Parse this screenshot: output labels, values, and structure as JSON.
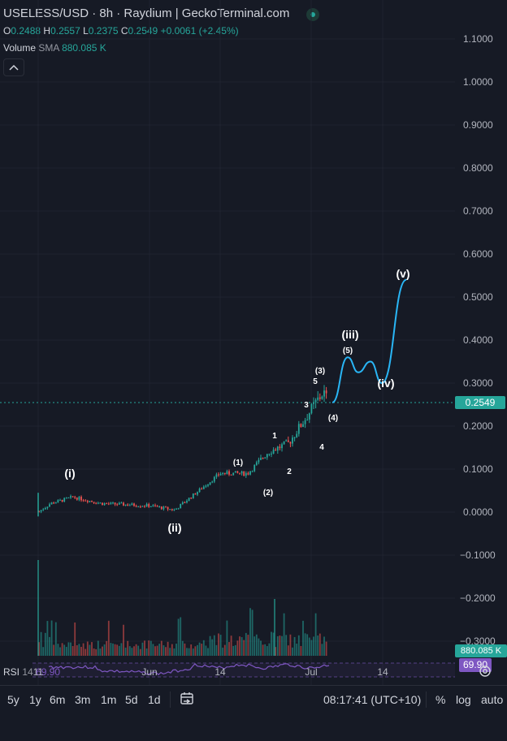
{
  "header": {
    "title": "USELESS/USD · 8h · Raydium | GeckoTerminal.com",
    "ohlc": {
      "o_label": "O",
      "o_value": "0.2488",
      "h_label": "H",
      "h_value": "0.2557",
      "l_label": "L",
      "l_value": "0.2375",
      "c_label": "C",
      "c_value": "0.2549",
      "change": "+0.0061 (+2.45%)"
    },
    "volume": {
      "label": "Volume",
      "sma": "SMA",
      "value": "880.085 K"
    }
  },
  "colors": {
    "background": "#161a25",
    "up": "#26a69a",
    "down": "#ef5350",
    "projection": "#29b6f6",
    "rsi": "#7e57c2",
    "grid": "#1f2330",
    "text": "#d1d4dc"
  },
  "price_axis": {
    "labels": [
      "1.1000",
      "1.0000",
      "0.9000",
      "0.8000",
      "0.7000",
      "0.6000",
      "0.5000",
      "0.4000",
      "0.3000",
      "0.2000",
      "0.1000",
      "0.0000",
      "−0.1000",
      "−0.2000",
      "−0.3000"
    ],
    "current_price": "0.2549",
    "volume_tag": "880.085 K",
    "rsi_tag": "69.90"
  },
  "rsi": {
    "label": "RSI",
    "period": "14",
    "value": "69.90"
  },
  "time_axis": {
    "labels": [
      "11",
      "Jun",
      "14",
      "Jul",
      "14"
    ]
  },
  "wave_labels": {
    "major": [
      "(i)",
      "(ii)",
      "(iii)",
      "(iv)",
      "(v)"
    ],
    "minor": [
      "(1)",
      "(2)",
      "(3)",
      "(4)",
      "(5)"
    ],
    "sub": [
      "1",
      "2",
      "3",
      "4",
      "5"
    ]
  },
  "chart_data": {
    "type": "candlestick",
    "title": "USELESS/USD · 8h · Raydium | GeckoTerminal.com",
    "ylim": [
      -0.3,
      1.1
    ],
    "x_ticks": [
      "11",
      "Jun",
      "14",
      "Jul",
      "14"
    ],
    "price_anchors": [
      {
        "x": "11",
        "y": 0.0
      },
      {
        "x": "13",
        "y": 0.02
      },
      {
        "x": "18",
        "y": 0.035
      },
      {
        "x": "23",
        "y": 0.02
      },
      {
        "x": "Jun",
        "y": 0.015
      },
      {
        "x": "Jun 7",
        "y": 0.005
      },
      {
        "x": "Jun 10",
        "y": 0.04
      },
      {
        "x": "14",
        "y": 0.09
      },
      {
        "x": "Jun 18",
        "y": 0.09
      },
      {
        "x": "Jun 21",
        "y": 0.14
      },
      {
        "x": "Jun 25",
        "y": 0.16
      },
      {
        "x": "Jun 29",
        "y": 0.28
      },
      {
        "x": "Jul",
        "y": 0.255
      }
    ],
    "projection": [
      {
        "x": "Jul 1",
        "y": 0.255
      },
      {
        "x": "Jul 6",
        "y": 0.36
      },
      {
        "x": "Jul 9",
        "y": 0.325
      },
      {
        "x": "Jul 12",
        "y": 0.35
      },
      {
        "x": "Jul 14",
        "y": 0.3
      },
      {
        "x": "Jul 19",
        "y": 0.54
      }
    ],
    "current_price": 0.2549,
    "volume_current": "880.085 K",
    "rsi_current": 69.9
  },
  "bottom_bar": {
    "ranges": [
      "5y",
      "1y",
      "6m",
      "3m",
      "1m",
      "5d",
      "1d"
    ],
    "time": "08:17:41 (UTC+10)",
    "percent": "%",
    "log": "log",
    "auto": "auto"
  }
}
